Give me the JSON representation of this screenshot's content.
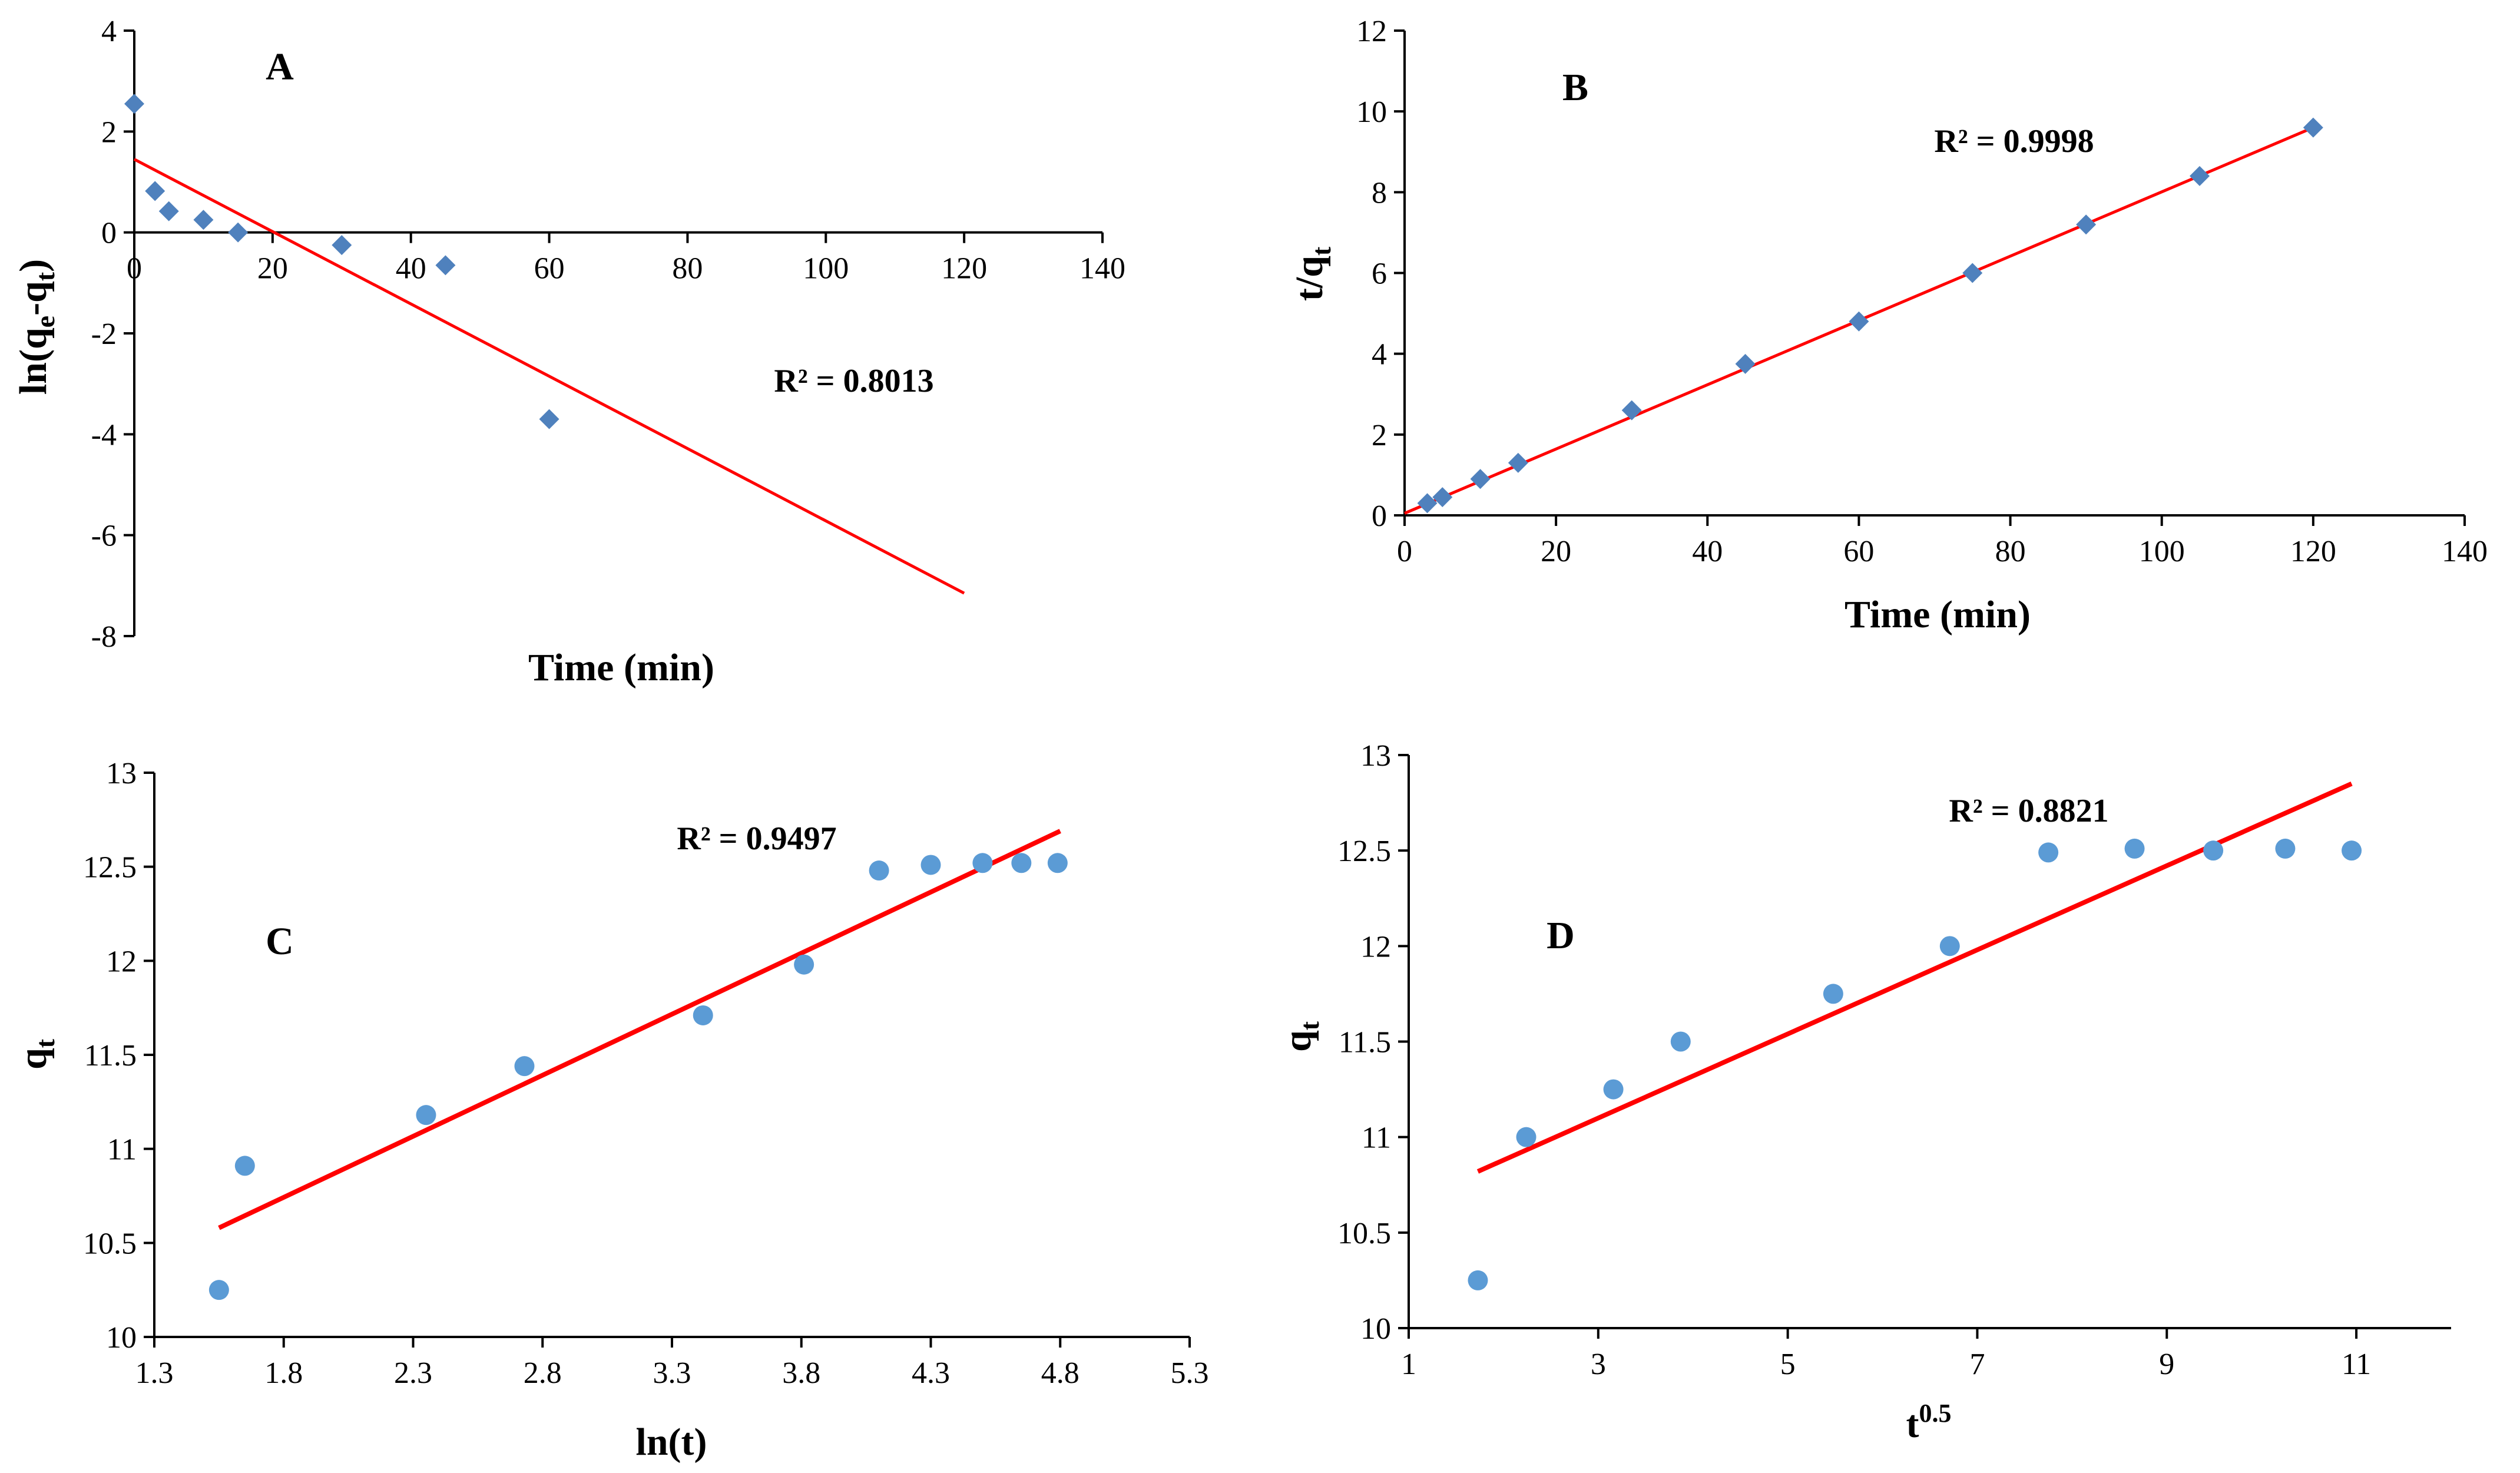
{
  "figure_title": "",
  "chart_data": [
    {
      "panel": "A",
      "type": "scatter",
      "title": "A",
      "xlabel": "Time (min)",
      "ylabel": "ln(qe-qt)",
      "ylabel_parts": {
        "base": "ln(q",
        "sub1": "e",
        "mid": "-q",
        "sub2": "t",
        "end": ")"
      },
      "xlim": [
        0,
        140
      ],
      "ylim": [
        -8,
        4
      ],
      "xticks": [
        "0",
        "20",
        "40",
        "60",
        "80",
        "100",
        "120",
        "140"
      ],
      "yticks": [
        "-8",
        "-6",
        "-4",
        "-2",
        "0",
        "2",
        "4"
      ],
      "marker": "diamond",
      "marker_color": "#4f81bd",
      "x": [
        0,
        3,
        5,
        10,
        15,
        30,
        45,
        60
      ],
      "y": [
        2.55,
        0.82,
        0.42,
        0.25,
        0.0,
        -0.25,
        -0.65,
        -3.7
      ],
      "trendline": {
        "x1": 0,
        "y1": 1.45,
        "x2": 120,
        "y2": -7.15,
        "color": "#ff0000"
      },
      "r2_label": "R² = 0.8013",
      "grid": false
    },
    {
      "panel": "B",
      "type": "scatter",
      "title": "B",
      "xlabel": "Time (min)",
      "ylabel": "t/qt",
      "ylabel_parts": {
        "base": "t/q",
        "sub1": "t"
      },
      "xlim": [
        0,
        140
      ],
      "ylim": [
        0,
        12
      ],
      "xticks": [
        "0",
        "20",
        "40",
        "60",
        "80",
        "100",
        "120",
        "140"
      ],
      "yticks": [
        "0",
        "2",
        "4",
        "6",
        "8",
        "10",
        "12"
      ],
      "marker": "diamond",
      "marker_color": "#4f81bd",
      "x": [
        3,
        5,
        10,
        15,
        30,
        45,
        60,
        75,
        90,
        105,
        120
      ],
      "y": [
        0.3,
        0.45,
        0.9,
        1.3,
        2.6,
        3.75,
        4.8,
        6.0,
        7.2,
        8.4,
        9.6
      ],
      "trendline": {
        "x1": 0,
        "y1": 0.05,
        "x2": 120,
        "y2": 9.6,
        "color": "#ff0000"
      },
      "r2_label": "R² = 0.9998",
      "grid": false
    },
    {
      "panel": "C",
      "type": "scatter",
      "title": "C",
      "xlabel": "ln(t)",
      "ylabel": "qt",
      "ylabel_parts": {
        "base": "q",
        "sub1": "t"
      },
      "xlim": [
        1.3,
        5.3
      ],
      "ylim": [
        10,
        13
      ],
      "xticks": [
        "1.3",
        "1.8",
        "2.3",
        "2.8",
        "3.3",
        "3.8",
        "4.3",
        "4.8",
        "5.3"
      ],
      "yticks": [
        "10",
        "10.5",
        "11",
        "11.5",
        "12",
        "12.5",
        "13"
      ],
      "marker": "circle",
      "marker_color": "#5b9bd5",
      "x": [
        1.55,
        1.65,
        2.35,
        2.73,
        3.42,
        3.81,
        4.1,
        4.3,
        4.5,
        4.65,
        4.79
      ],
      "y": [
        10.25,
        10.91,
        11.18,
        11.44,
        11.71,
        11.98,
        12.48,
        12.51,
        12.52,
        12.52,
        12.52
      ],
      "trendline": {
        "x1": 1.55,
        "y1": 10.58,
        "x2": 4.8,
        "y2": 12.69,
        "color": "#ff0000"
      },
      "r2_label": "R² = 0.9497",
      "grid": false
    },
    {
      "panel": "D",
      "type": "scatter",
      "title": "D",
      "xlabel": "t0.5",
      "xlabel_parts": {
        "base": "t",
        "sup": "0.5"
      },
      "ylabel": "qt",
      "ylabel_parts": {
        "base": "q",
        "sub1": "t"
      },
      "xlim": [
        1,
        12
      ],
      "ylim": [
        10,
        13
      ],
      "xticks": [
        "1",
        "3",
        "5",
        "7",
        "9",
        "11"
      ],
      "yticks": [
        "10",
        "10.5",
        "11",
        "11.5",
        "12",
        "12.5",
        "13"
      ],
      "marker": "circle",
      "marker_color": "#5b9bd5",
      "x": [
        1.73,
        2.24,
        3.16,
        3.87,
        5.48,
        6.71,
        7.75,
        8.66,
        9.49,
        10.25,
        10.95
      ],
      "y": [
        10.25,
        11.0,
        11.25,
        11.5,
        11.75,
        12.0,
        12.49,
        12.51,
        12.5,
        12.51,
        12.5
      ],
      "trendline": {
        "x1": 1.73,
        "y1": 10.82,
        "x2": 10.95,
        "y2": 12.85,
        "color": "#ff0000"
      },
      "r2_label": "R² = 0.8821",
      "grid": false
    }
  ]
}
